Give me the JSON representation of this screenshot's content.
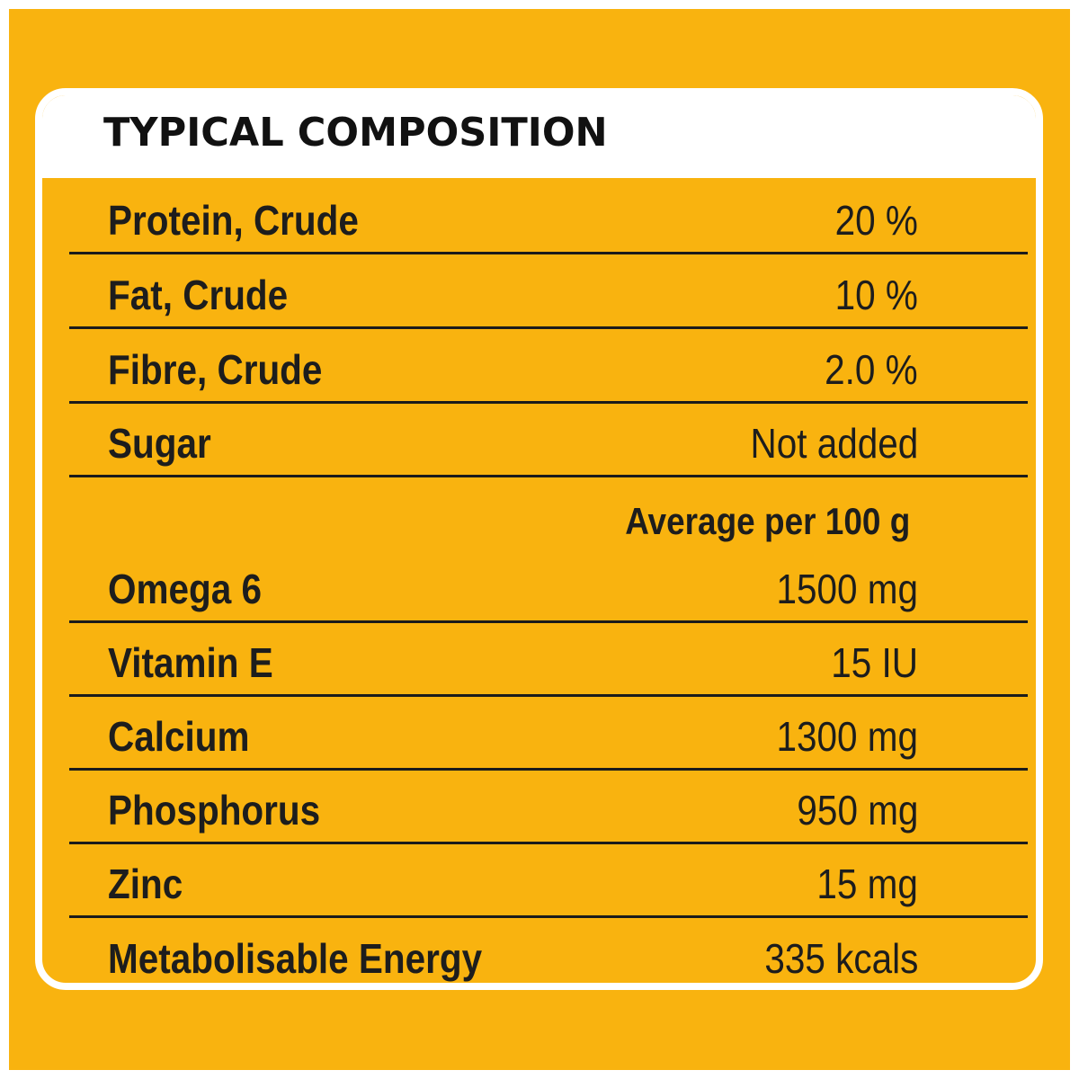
{
  "title": "TYPICAL COMPOSITION",
  "composition": [
    {
      "label": "Protein, Crude",
      "value": "20 %"
    },
    {
      "label": "Fat, Crude",
      "value": "10 %"
    },
    {
      "label": "Fibre, Crude",
      "value": "2.0 %"
    },
    {
      "label": "Sugar",
      "value": "Not added"
    }
  ],
  "average_header": "Average per 100 g",
  "nutrients": [
    {
      "label": "Omega 6",
      "value": "1500 mg"
    },
    {
      "label": "Vitamin E",
      "value": "15 IU"
    },
    {
      "label": "Calcium",
      "value": "1300 mg"
    },
    {
      "label": "Phosphorus",
      "value": "950 mg"
    },
    {
      "label": "Zinc",
      "value": "15 mg"
    },
    {
      "label": "Metabolisable Energy",
      "value": "335 kcals"
    }
  ],
  "colors": {
    "background": "#f9b30f",
    "border": "#ffffff",
    "text": "#1d1d1d"
  }
}
